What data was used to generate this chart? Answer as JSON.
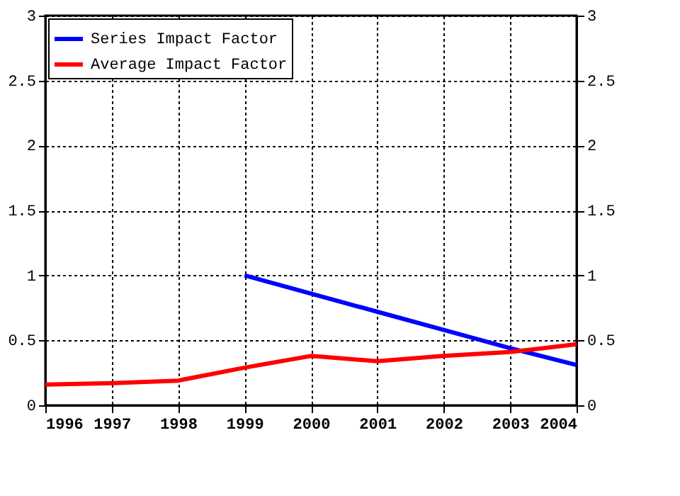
{
  "chart_data": {
    "type": "line",
    "x": [
      1996,
      1997,
      1998,
      1999,
      2000,
      2001,
      2002,
      2003,
      2004
    ],
    "series": [
      {
        "name": "Series Impact Factor",
        "color": "#0000ff",
        "values": [
          null,
          null,
          null,
          1.0,
          0.86,
          0.72,
          0.58,
          0.44,
          0.31
        ]
      },
      {
        "name": "Average Impact Factor",
        "color": "#ff0000",
        "values": [
          0.16,
          0.17,
          0.19,
          0.29,
          0.38,
          0.34,
          0.38,
          0.41,
          0.47
        ]
      }
    ],
    "xlim": [
      1996,
      2004
    ],
    "xticks": [
      1996,
      1997,
      1998,
      1999,
      2000,
      2001,
      2002,
      2003,
      2004
    ],
    "ylim": [
      0,
      3
    ],
    "yticks": [
      0,
      0.5,
      1,
      1.5,
      2,
      2.5,
      3
    ],
    "y2lim": [
      0,
      3
    ],
    "y2ticks": [
      0,
      0.5,
      1,
      1.5,
      2,
      2.5,
      3
    ],
    "grid": true,
    "legend": "top left",
    "line_style": "solid",
    "marker": "none"
  }
}
